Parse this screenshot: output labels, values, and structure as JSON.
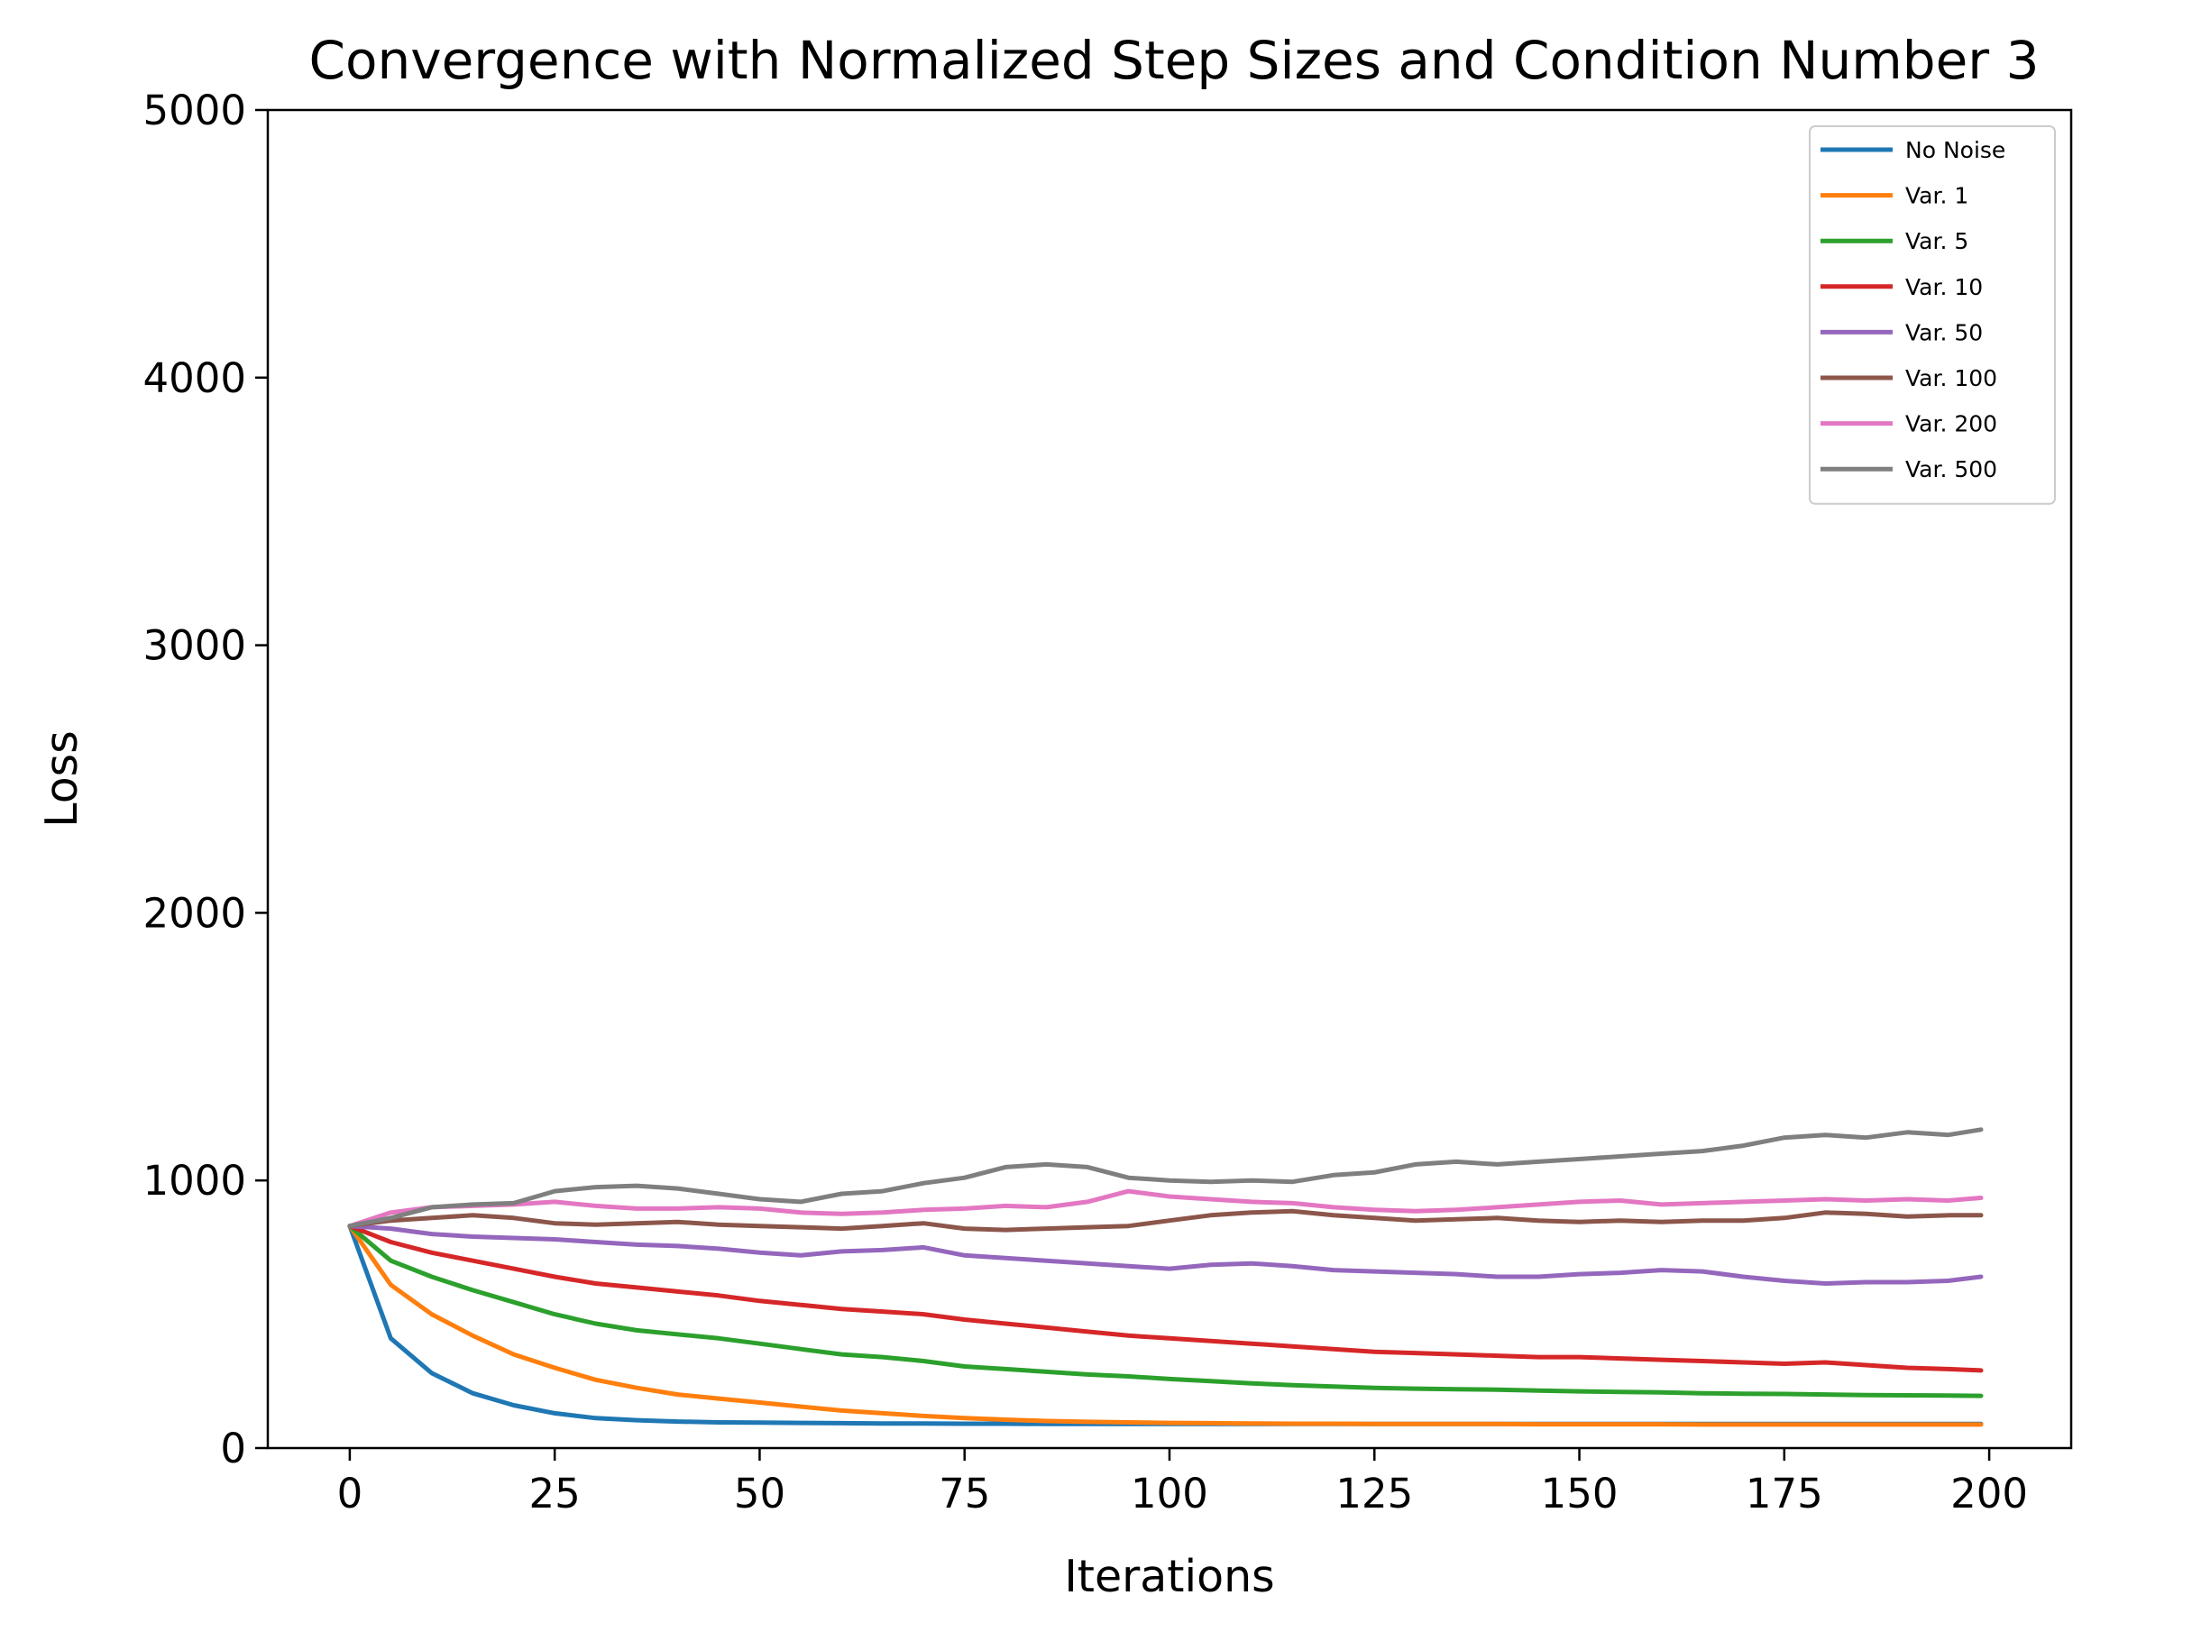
{
  "chart_data": {
    "type": "line",
    "title": "Convergence with Normalized Step Sizes and Condition Number 3",
    "xlabel": "Iterations",
    "ylabel": "Loss",
    "xlim": [
      -10,
      210
    ],
    "ylim": [
      0,
      5000
    ],
    "xticks": [
      0,
      25,
      50,
      75,
      100,
      125,
      150,
      175,
      200
    ],
    "xtick_labels": [
      "0",
      "25",
      "50",
      "75",
      "100",
      "125",
      "150",
      "175",
      "200"
    ],
    "yticks": [
      0,
      1000,
      2000,
      3000,
      4000,
      5000
    ],
    "ytick_labels": [
      "0",
      "1000",
      "2000",
      "3000",
      "4000",
      "5000"
    ],
    "grid": false,
    "legend_position": "top-right",
    "x": [
      0,
      5,
      10,
      15,
      20,
      25,
      30,
      35,
      40,
      45,
      50,
      55,
      60,
      65,
      70,
      75,
      80,
      85,
      90,
      95,
      100,
      105,
      110,
      115,
      120,
      125,
      130,
      135,
      140,
      145,
      150,
      155,
      160,
      165,
      170,
      175,
      180,
      185,
      190,
      195,
      199
    ],
    "series": [
      {
        "name": "No Noise",
        "color": "#1f77b4",
        "values": [
          830,
          410,
          280,
          205,
          160,
          130,
          112,
          104,
          99,
          96,
          95,
          94,
          93,
          92,
          92,
          91,
          91,
          90,
          90,
          90,
          90,
          90,
          90,
          90,
          90,
          90,
          90,
          90,
          90,
          90,
          90,
          90,
          90,
          90,
          90,
          90,
          90,
          90,
          90,
          90,
          90
        ]
      },
      {
        "name": "Var. 1",
        "color": "#ff7f0e",
        "values": [
          830,
          610,
          500,
          420,
          350,
          300,
          255,
          225,
          200,
          185,
          170,
          155,
          140,
          130,
          120,
          112,
          106,
          101,
          98,
          96,
          94,
          93,
          92,
          91,
          91,
          90,
          90,
          90,
          90,
          89,
          89,
          89,
          89,
          88,
          88,
          88,
          88,
          88,
          88,
          88,
          88
        ]
      },
      {
        "name": "Var. 5",
        "color": "#2ca02c",
        "values": [
          830,
          700,
          640,
          590,
          545,
          500,
          465,
          440,
          425,
          410,
          390,
          370,
          350,
          340,
          325,
          305,
          295,
          285,
          275,
          268,
          258,
          250,
          242,
          235,
          230,
          225,
          222,
          220,
          218,
          215,
          212,
          210,
          208,
          205,
          203,
          202,
          200,
          198,
          197,
          196,
          195
        ]
      },
      {
        "name": "Var. 10",
        "color": "#d62728",
        "values": [
          830,
          770,
          730,
          700,
          670,
          640,
          615,
          600,
          585,
          570,
          550,
          535,
          520,
          510,
          500,
          480,
          465,
          450,
          435,
          420,
          410,
          400,
          390,
          380,
          370,
          360,
          355,
          350,
          345,
          340,
          340,
          335,
          330,
          325,
          320,
          315,
          320,
          310,
          300,
          295,
          290
        ]
      },
      {
        "name": "Var. 50",
        "color": "#9467bd",
        "values": [
          830,
          820,
          800,
          790,
          785,
          780,
          770,
          760,
          755,
          745,
          730,
          720,
          735,
          740,
          750,
          720,
          710,
          700,
          690,
          680,
          670,
          685,
          690,
          680,
          665,
          660,
          655,
          650,
          640,
          640,
          650,
          655,
          665,
          660,
          640,
          625,
          615,
          620,
          620,
          625,
          640
        ]
      },
      {
        "name": "Var. 100",
        "color": "#8c564b",
        "values": [
          830,
          850,
          860,
          870,
          860,
          840,
          835,
          840,
          845,
          835,
          830,
          825,
          820,
          830,
          840,
          820,
          815,
          820,
          825,
          830,
          850,
          870,
          880,
          885,
          870,
          860,
          850,
          855,
          860,
          850,
          845,
          850,
          845,
          850,
          850,
          860,
          880,
          875,
          865,
          870,
          870
        ]
      },
      {
        "name": "Var. 200",
        "color": "#e377c2",
        "values": [
          830,
          880,
          900,
          905,
          910,
          920,
          905,
          895,
          895,
          900,
          895,
          880,
          875,
          880,
          890,
          895,
          905,
          900,
          920,
          960,
          940,
          930,
          920,
          915,
          900,
          890,
          885,
          890,
          900,
          910,
          920,
          925,
          910,
          915,
          920,
          925,
          930,
          925,
          930,
          925,
          935
        ]
      },
      {
        "name": "Var. 500",
        "color": "#7f7f7f",
        "values": [
          830,
          860,
          900,
          910,
          915,
          960,
          975,
          980,
          970,
          950,
          930,
          920,
          950,
          960,
          990,
          1010,
          1050,
          1060,
          1050,
          1010,
          1000,
          995,
          1000,
          995,
          1020,
          1030,
          1060,
          1070,
          1060,
          1070,
          1080,
          1090,
          1100,
          1110,
          1130,
          1160,
          1170,
          1160,
          1180,
          1170,
          1190
        ]
      }
    ]
  }
}
